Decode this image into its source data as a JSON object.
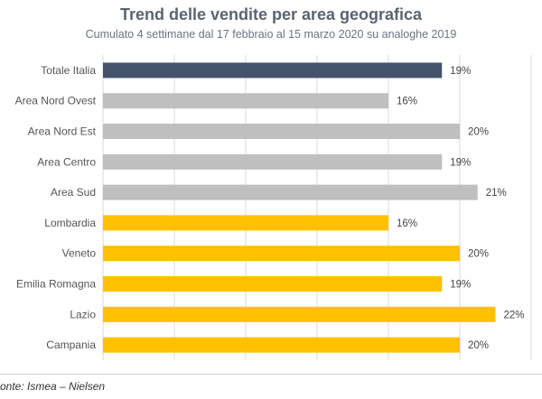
{
  "header": {
    "title": "Trend delle vendite per area geografica",
    "subtitle": "Cumulato 4 settimane dal 17 febbraio al 15 marzo 2020 su analoghe 2019"
  },
  "footer": {
    "source": "onte: Ismea – Nielsen"
  },
  "colors": {
    "total": "#44536a",
    "area": "#bfbfbf",
    "region": "#ffc000",
    "grid": "#d9d9d9"
  },
  "chart_data": {
    "type": "bar",
    "orientation": "horizontal",
    "title": "Trend delle vendite per area geografica",
    "subtitle": "Cumulato 4 settimane dal 17 febbraio al 15 marzo 2020 su analoghe 2019",
    "categories": [
      "Totale Italia",
      "Area Nord Ovest",
      "Area Nord Est",
      "Area Centro",
      "Area Sud",
      "Lombardia",
      "Veneto",
      "Emilia Romagna",
      "Lazio",
      "Campania"
    ],
    "values": [
      19,
      16,
      20,
      19,
      21,
      16,
      20,
      19,
      22,
      20
    ],
    "value_labels": [
      "19%",
      "16%",
      "20%",
      "19%",
      "21%",
      "16%",
      "20%",
      "19%",
      "22%",
      "20%"
    ],
    "groups": [
      "total",
      "area",
      "area",
      "area",
      "area",
      "region",
      "region",
      "region",
      "region",
      "region"
    ],
    "xlim": [
      0,
      24
    ],
    "grid": true,
    "legend": "none"
  }
}
